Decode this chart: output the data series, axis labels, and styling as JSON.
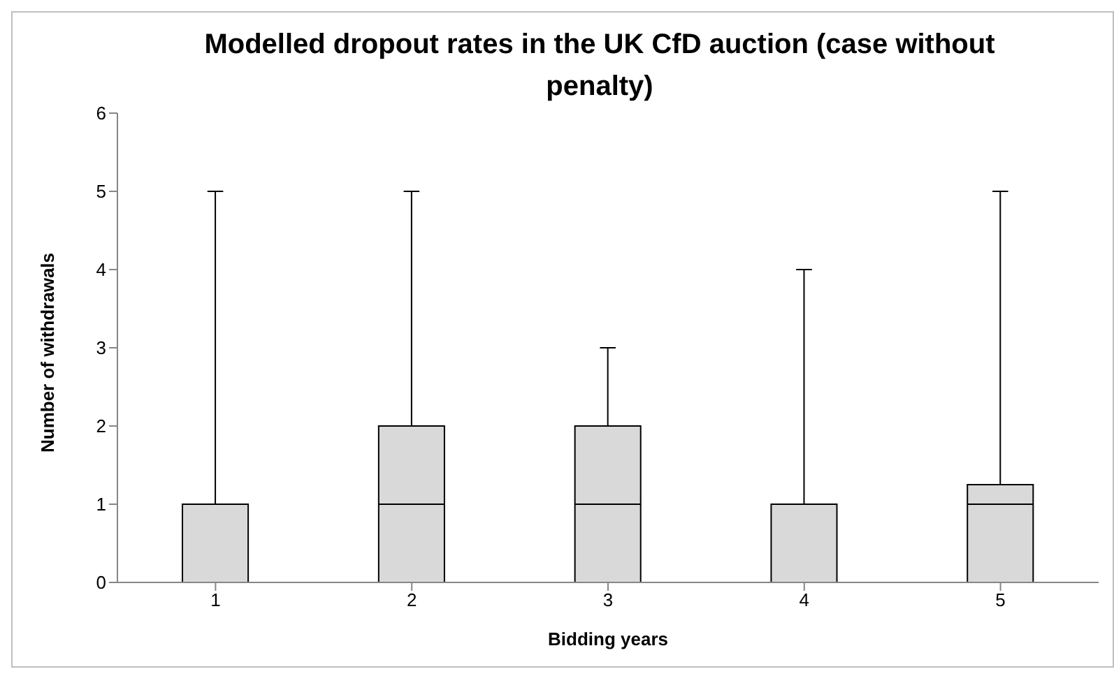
{
  "chart_data": {
    "type": "box",
    "title": "Modelled dropout rates in the UK CfD auction (case without penalty)",
    "xlabel": "Bidding years",
    "ylabel": "Number of withdrawals",
    "categories": [
      "1",
      "2",
      "3",
      "4",
      "5"
    ],
    "boxes": [
      {
        "low": 0,
        "q1": 0,
        "median": 1,
        "q3": 1,
        "high": 5
      },
      {
        "low": 0,
        "q1": 0,
        "median": 1,
        "q3": 2,
        "high": 5
      },
      {
        "low": 0,
        "q1": 0,
        "median": 1,
        "q3": 2,
        "high": 3
      },
      {
        "low": 0,
        "q1": 0,
        "median": 1,
        "q3": 1,
        "high": 4
      },
      {
        "low": 0,
        "q1": 0,
        "median": 1,
        "q3": 1.25,
        "high": 5
      }
    ],
    "color": "#d9d9d9",
    "ylim": [
      0,
      6
    ],
    "yticks": [
      0,
      1,
      2,
      3,
      4,
      5,
      6
    ],
    "grid": false,
    "legend": false
  }
}
